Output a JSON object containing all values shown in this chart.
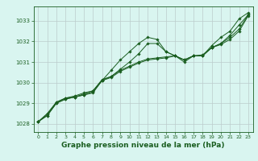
{
  "bg_color": "#d9f5f0",
  "grid_color": "#bbcccc",
  "line_color": "#1a5e20",
  "marker_color": "#1a5e20",
  "xlabel": "Graphe pression niveau de la mer (hPa)",
  "xlabel_fontsize": 6.5,
  "ylim": [
    1027.6,
    1033.7
  ],
  "xlim": [
    -0.5,
    23.5
  ],
  "yticks": [
    1028,
    1029,
    1030,
    1031,
    1032,
    1033
  ],
  "xticks": [
    0,
    1,
    2,
    3,
    4,
    5,
    6,
    7,
    8,
    9,
    10,
    11,
    12,
    13,
    14,
    15,
    16,
    17,
    18,
    19,
    20,
    21,
    22,
    23
  ],
  "series": [
    [
      1028.1,
      1028.4,
      1029.0,
      1029.2,
      1029.3,
      1029.4,
      1029.5,
      1030.1,
      1030.6,
      1031.1,
      1031.5,
      1031.9,
      1032.2,
      1032.1,
      1031.5,
      1031.3,
      1031.0,
      1031.3,
      1031.3,
      1031.8,
      1032.2,
      1032.5,
      1033.1,
      1033.4
    ],
    [
      1028.1,
      1028.4,
      1029.0,
      1029.2,
      1029.3,
      1029.4,
      1029.55,
      1030.1,
      1030.3,
      1030.65,
      1031.0,
      1031.4,
      1031.9,
      1031.9,
      1031.5,
      1031.3,
      1031.1,
      1031.3,
      1031.3,
      1031.7,
      1031.9,
      1032.3,
      1032.8,
      1033.3
    ],
    [
      1028.1,
      1028.45,
      1029.05,
      1029.25,
      1029.3,
      1029.45,
      1029.6,
      1030.15,
      1030.3,
      1030.6,
      1030.8,
      1031.0,
      1031.15,
      1031.2,
      1031.25,
      1031.3,
      1031.1,
      1031.3,
      1031.3,
      1031.7,
      1031.9,
      1032.2,
      1032.6,
      1033.3
    ],
    [
      1028.1,
      1028.5,
      1029.05,
      1029.25,
      1029.35,
      1029.5,
      1029.6,
      1030.1,
      1030.25,
      1030.55,
      1030.75,
      1030.95,
      1031.1,
      1031.15,
      1031.2,
      1031.3,
      1031.1,
      1031.3,
      1031.35,
      1031.7,
      1031.85,
      1032.1,
      1032.5,
      1033.25
    ]
  ]
}
